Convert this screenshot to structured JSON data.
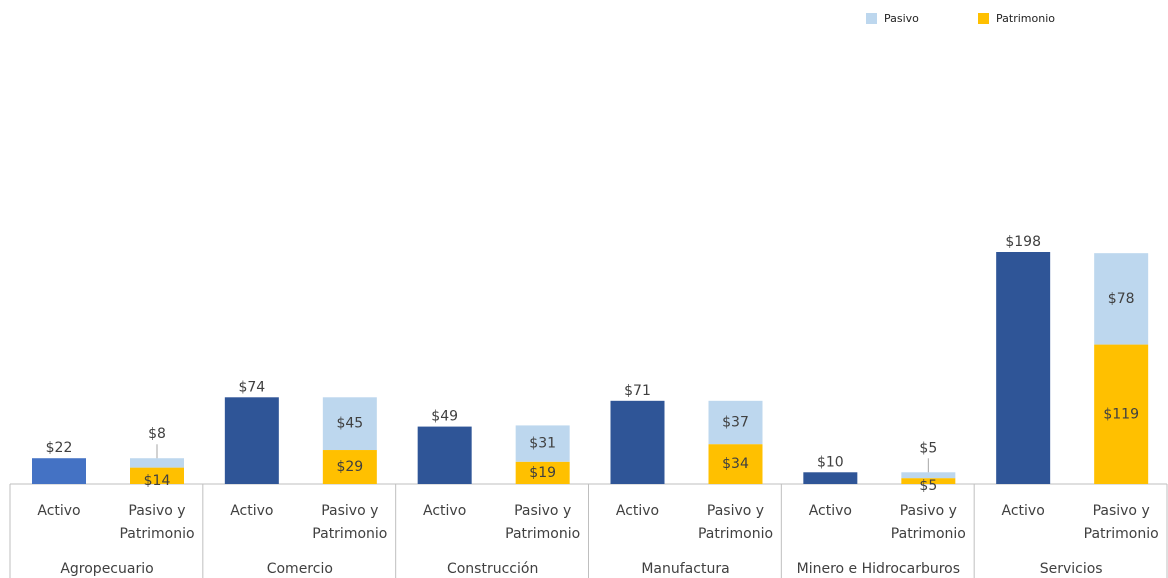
{
  "chart_data": {
    "type": "bar",
    "stacked": true,
    "groups": [
      "Agropecuario",
      "Comercio",
      "Construcción",
      "Manufactura",
      "Minero e Hidrocarburos",
      "Servicios"
    ],
    "bar_labels": [
      "Activo",
      "Pasivo y Patrimonio"
    ],
    "activo": {
      "values": [
        22,
        74,
        49,
        71,
        10,
        198
      ],
      "value_labels": [
        "$22",
        "$74",
        "$49",
        "$71",
        "$10",
        "$198"
      ],
      "colors": [
        "#4472c4",
        "#2f5597",
        "#2f5597",
        "#2f5597",
        "#2f5597",
        "#2f5597"
      ]
    },
    "series": [
      {
        "name": "Pasivo",
        "color": "#bdd7ee",
        "values": [
          8,
          45,
          31,
          37,
          5,
          78
        ],
        "value_labels": [
          "$8",
          "$45",
          "$31",
          "$37",
          "$5",
          "$78"
        ]
      },
      {
        "name": "Patrimonio",
        "color": "#ffc000",
        "values": [
          14,
          29,
          19,
          34,
          5,
          119
        ],
        "value_labels": [
          "$14",
          "$29",
          "$19",
          "$34",
          "$5",
          "$119"
        ]
      }
    ]
  }
}
